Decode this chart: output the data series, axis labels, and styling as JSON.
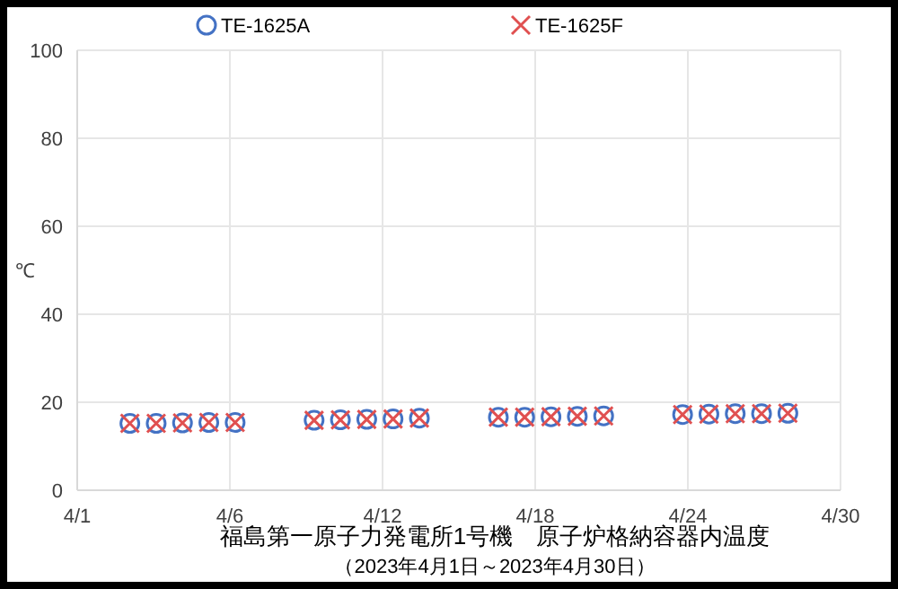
{
  "chart_data": {
    "type": "scatter",
    "title": "福島第一原子力発電所1号機　原子炉格納容器内温度",
    "subtitle": "（2023年4月1日～2023年4月30日）",
    "ylabel": "℃",
    "x": [
      "2023-04-03",
      "2023-04-04",
      "2023-04-05",
      "2023-04-06",
      "2023-04-07",
      "2023-04-10",
      "2023-04-11",
      "2023-04-12",
      "2023-04-13",
      "2023-04-14",
      "2023-04-17",
      "2023-04-18",
      "2023-04-19",
      "2023-04-20",
      "2023-04-21",
      "2023-04-24",
      "2023-04-25",
      "2023-04-26",
      "2023-04-27",
      "2023-04-28"
    ],
    "series": [
      {
        "name": "TE-1625A",
        "color": "#4472c4",
        "marker": "circle",
        "values": [
          15.2,
          15.2,
          15.3,
          15.4,
          15.4,
          15.9,
          16.0,
          16.1,
          16.2,
          16.4,
          16.6,
          16.6,
          16.7,
          16.8,
          16.9,
          17.2,
          17.3,
          17.4,
          17.4,
          17.5
        ]
      },
      {
        "name": "TE-1625F",
        "color": "#e05050",
        "marker": "cross",
        "values": [
          15.2,
          15.2,
          15.3,
          15.4,
          15.4,
          15.9,
          16.0,
          16.1,
          16.2,
          16.4,
          16.6,
          16.6,
          16.7,
          16.8,
          16.9,
          17.2,
          17.3,
          17.4,
          17.4,
          17.5
        ]
      }
    ],
    "xlim": [
      "2023-04-01",
      "2023-04-30"
    ],
    "xticks": [
      {
        "value": "2023-04-01",
        "label": "4/1"
      },
      {
        "value": "2023-04-06T19:12",
        "label": "4/6"
      },
      {
        "value": "2023-04-12T14:24",
        "label": "4/12"
      },
      {
        "value": "2023-04-18T09:36",
        "label": "4/18"
      },
      {
        "value": "2023-04-24T04:48",
        "label": "4/24"
      },
      {
        "value": "2023-04-30",
        "label": "4/30"
      }
    ],
    "ylim": [
      0,
      100
    ],
    "yticks": [
      0,
      20,
      40,
      60,
      80,
      100
    ],
    "grid": true,
    "legend": "top"
  }
}
